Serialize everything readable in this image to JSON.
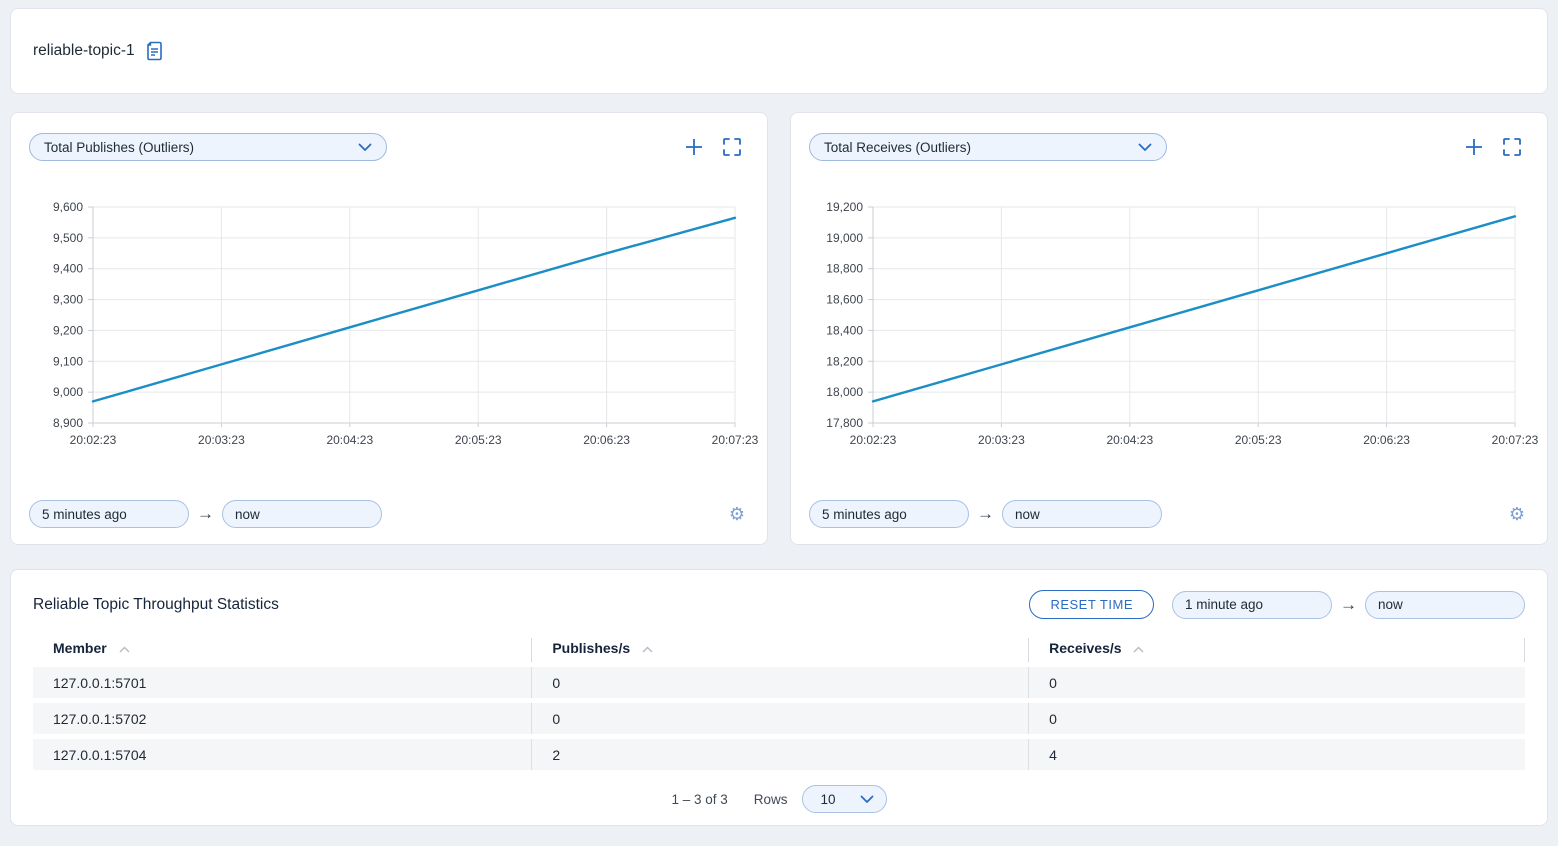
{
  "header": {
    "title": "reliable-topic-1"
  },
  "icons": {
    "arrow": "→",
    "gear": "⚙"
  },
  "colors": {
    "accent": "#2a6cc4",
    "line": "#1b8ec6",
    "input_bg": "#edf4fd",
    "grid": "#e5e7ea",
    "axis": "#c9ced6"
  },
  "charts": [
    {
      "metric_label": "Total Publishes (Outliers)",
      "from_value": "5 minutes ago",
      "to_value": "now"
    },
    {
      "metric_label": "Total Receives (Outliers)",
      "from_value": "5 minutes ago",
      "to_value": "now"
    }
  ],
  "chart_data": [
    {
      "type": "line",
      "title": "Total Publishes (Outliers)",
      "x": [
        "20:02:23",
        "20:03:23",
        "20:04:23",
        "20:05:23",
        "20:06:23",
        "20:07:23"
      ],
      "series": [
        {
          "name": "Total Publishes",
          "values": [
            8970,
            9090,
            9210,
            9330,
            9450,
            9565
          ]
        }
      ],
      "ylim": [
        8900,
        9600
      ],
      "ytick_step": 100,
      "grid": true,
      "legend": "none",
      "line_color": "#1b8ec6"
    },
    {
      "type": "line",
      "title": "Total Receives (Outliers)",
      "x": [
        "20:02:23",
        "20:03:23",
        "20:04:23",
        "20:05:23",
        "20:06:23",
        "20:07:23"
      ],
      "series": [
        {
          "name": "Total Receives",
          "values": [
            17940,
            18180,
            18420,
            18660,
            18900,
            19140
          ]
        }
      ],
      "ylim": [
        17800,
        19200
      ],
      "ytick_step": 200,
      "grid": true,
      "legend": "none",
      "line_color": "#1b8ec6"
    }
  ],
  "stats_panel": {
    "title": "Reliable Topic Throughput Statistics",
    "reset_button": "RESET TIME",
    "from_value": "1 minute ago",
    "to_value": "now",
    "table": {
      "columns": [
        "Member",
        "Publishes/s",
        "Receives/s"
      ],
      "rows": [
        {
          "member": "127.0.0.1:5701",
          "publishes": "0",
          "receives": "0"
        },
        {
          "member": "127.0.0.1:5702",
          "publishes": "0",
          "receives": "0"
        },
        {
          "member": "127.0.0.1:5704",
          "publishes": "2",
          "receives": "4"
        }
      ]
    },
    "pagination": {
      "range_text": "1 – 3 of 3",
      "rows_label": "Rows",
      "rows_per_page": "10"
    }
  }
}
